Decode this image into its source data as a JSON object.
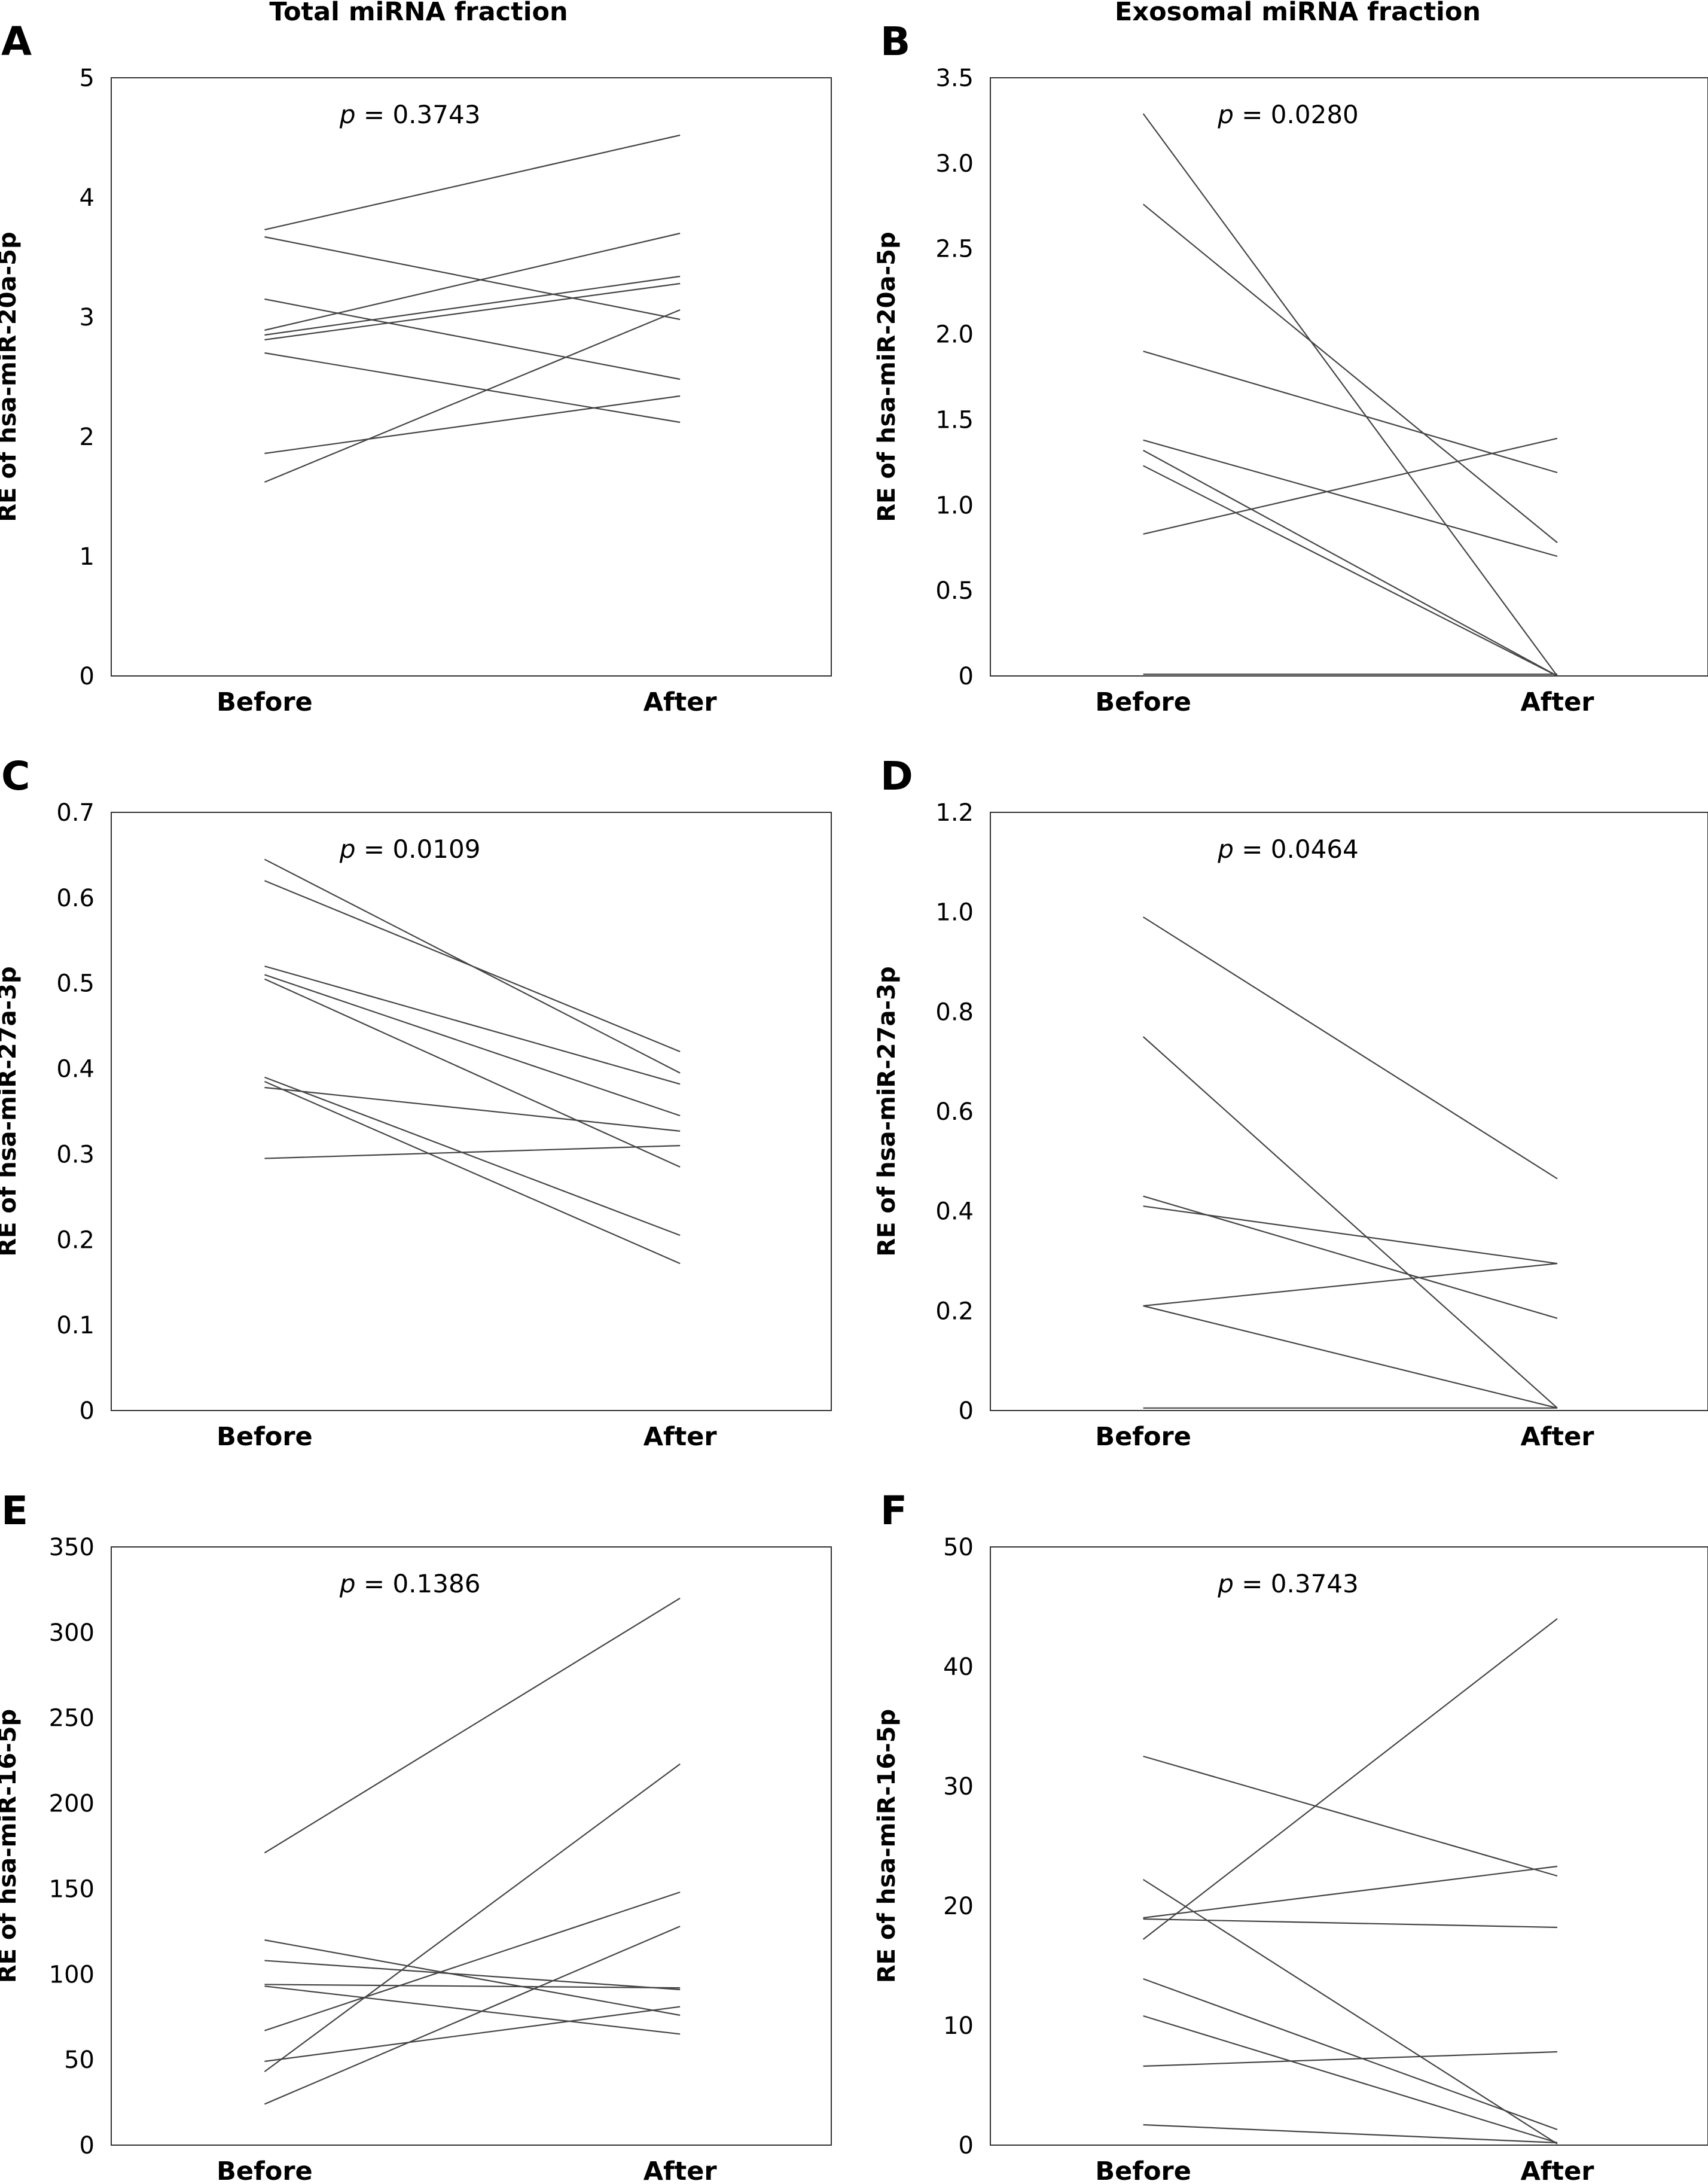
{
  "column_titles": [
    "Total miRNA fraction",
    "Exosomal miRNA fraction"
  ],
  "chart_data": [
    {
      "panel": "A",
      "type": "line",
      "categories": [
        "Before",
        "After"
      ],
      "ylabel": "RE of hsa-miR-20a-5p",
      "ylim": [
        0,
        5
      ],
      "yticks": [
        "0",
        "1",
        "2",
        "3",
        "4",
        "5"
      ],
      "annotation": "p = 0.3743",
      "p_value": "0.3743",
      "series": [
        {
          "values": [
            3.73,
            4.52
          ]
        },
        {
          "values": [
            3.67,
            2.98
          ]
        },
        {
          "values": [
            3.15,
            2.48
          ]
        },
        {
          "values": [
            2.89,
            3.7
          ]
        },
        {
          "values": [
            2.85,
            3.34
          ]
        },
        {
          "values": [
            2.81,
            3.28
          ]
        },
        {
          "values": [
            2.7,
            2.12
          ]
        },
        {
          "values": [
            1.86,
            2.34
          ]
        },
        {
          "values": [
            1.62,
            3.06
          ]
        }
      ]
    },
    {
      "panel": "B",
      "type": "line",
      "categories": [
        "Before",
        "After"
      ],
      "ylabel": "RE of hsa-miR-20a-5p",
      "ylim": [
        0,
        3.5
      ],
      "yticks": [
        "0",
        "0.5",
        "1.0",
        "1.5",
        "2.0",
        "2.5",
        "3.0",
        "3.5"
      ],
      "annotation": "p = 0.0280",
      "p_value": "0.0280",
      "series": [
        {
          "values": [
            3.29,
            0.0
          ]
        },
        {
          "values": [
            2.76,
            0.78
          ]
        },
        {
          "values": [
            1.9,
            1.19
          ]
        },
        {
          "values": [
            1.38,
            0.7
          ]
        },
        {
          "values": [
            1.32,
            0.0
          ]
        },
        {
          "values": [
            1.23,
            0.0
          ]
        },
        {
          "values": [
            0.83,
            1.39
          ]
        },
        {
          "values": [
            0.01,
            0.01
          ]
        }
      ]
    },
    {
      "panel": "C",
      "type": "line",
      "categories": [
        "Before",
        "After"
      ],
      "ylabel": "RE of hsa-miR-27a-3p",
      "ylim": [
        0,
        0.7
      ],
      "yticks": [
        "0",
        "0.1",
        "0.2",
        "0.3",
        "0.4",
        "0.5",
        "0.6",
        "0.7"
      ],
      "annotation": "p = 0.0109",
      "p_value": "0.0109",
      "series": [
        {
          "values": [
            0.645,
            0.395
          ]
        },
        {
          "values": [
            0.62,
            0.42
          ]
        },
        {
          "values": [
            0.52,
            0.382
          ]
        },
        {
          "values": [
            0.51,
            0.345
          ]
        },
        {
          "values": [
            0.505,
            0.285
          ]
        },
        {
          "values": [
            0.39,
            0.205
          ]
        },
        {
          "values": [
            0.385,
            0.172
          ]
        },
        {
          "values": [
            0.378,
            0.327
          ]
        },
        {
          "values": [
            0.295,
            0.31
          ]
        }
      ]
    },
    {
      "panel": "D",
      "type": "line",
      "categories": [
        "Before",
        "After"
      ],
      "ylabel": "RE of hsa-miR-27a-3p",
      "ylim": [
        0,
        1.2
      ],
      "yticks": [
        "0",
        "0.2",
        "0.4",
        "0.6",
        "0.8",
        "1.0",
        "1.2"
      ],
      "annotation": "p = 0.0464",
      "p_value": "0.0464",
      "series": [
        {
          "values": [
            0.99,
            0.465
          ]
        },
        {
          "values": [
            0.75,
            0.005
          ]
        },
        {
          "values": [
            0.43,
            0.185
          ]
        },
        {
          "values": [
            0.41,
            0.295
          ]
        },
        {
          "values": [
            0.21,
            0.295
          ]
        },
        {
          "values": [
            0.21,
            0.005
          ]
        },
        {
          "values": [
            0.005,
            0.005
          ]
        }
      ]
    },
    {
      "panel": "E",
      "type": "line",
      "categories": [
        "Before",
        "After"
      ],
      "ylabel": "RE of hsa-miR-16-5p",
      "ylim": [
        0,
        350
      ],
      "yticks": [
        "0",
        "50",
        "100",
        "150",
        "200",
        "250",
        "300",
        "350"
      ],
      "annotation": "p = 0.1386",
      "p_value": "0.1386",
      "series": [
        {
          "values": [
            171,
            320
          ]
        },
        {
          "values": [
            120,
            76
          ]
        },
        {
          "values": [
            108,
            91
          ]
        },
        {
          "values": [
            94,
            92
          ]
        },
        {
          "values": [
            93,
            65
          ]
        },
        {
          "values": [
            67,
            148
          ]
        },
        {
          "values": [
            49,
            81
          ]
        },
        {
          "values": [
            43,
            223
          ]
        },
        {
          "values": [
            24,
            128
          ]
        }
      ]
    },
    {
      "panel": "F",
      "type": "line",
      "categories": [
        "Before",
        "After"
      ],
      "ylabel": "RE of hsa-miR-16-5p",
      "ylim": [
        0,
        50
      ],
      "yticks": [
        "0",
        "10",
        "20",
        "30",
        "40",
        "50"
      ],
      "annotation": "p = 0.3743",
      "p_value": "0.3743",
      "series": [
        {
          "values": [
            32.5,
            22.5
          ]
        },
        {
          "values": [
            22.2,
            0.1
          ]
        },
        {
          "values": [
            19.0,
            23.3
          ]
        },
        {
          "values": [
            18.9,
            18.2
          ]
        },
        {
          "values": [
            17.2,
            44.0
          ]
        },
        {
          "values": [
            13.9,
            1.3
          ]
        },
        {
          "values": [
            10.8,
            0.2
          ]
        },
        {
          "values": [
            6.6,
            7.8
          ]
        },
        {
          "values": [
            1.7,
            0.2
          ]
        }
      ]
    }
  ]
}
